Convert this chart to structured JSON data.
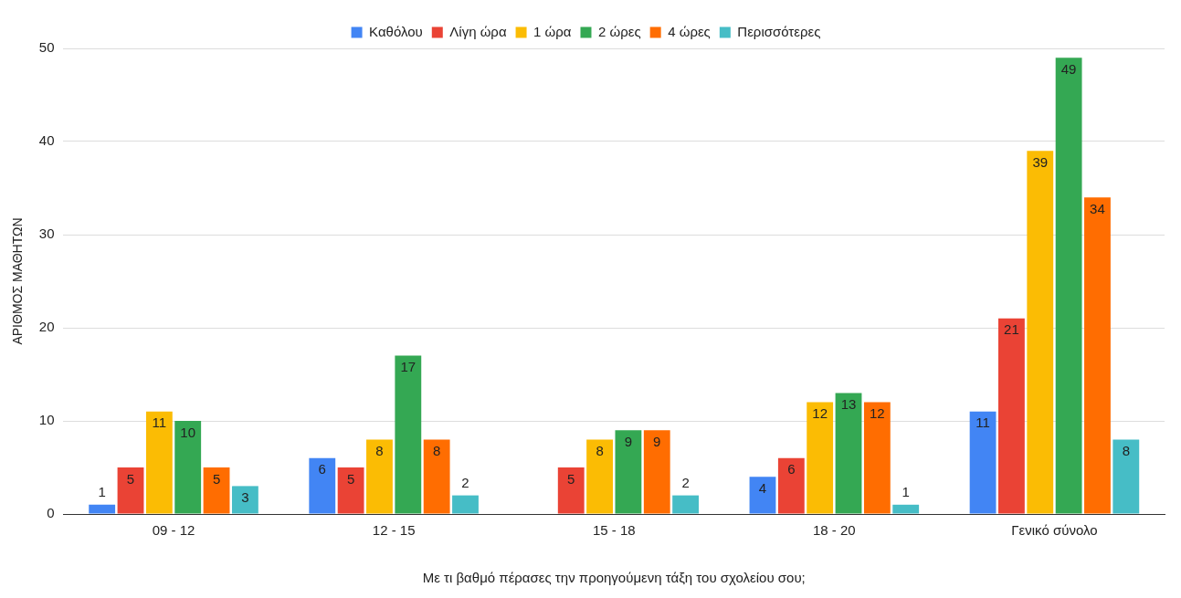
{
  "chart_data": {
    "type": "bar",
    "xlabel": "Με τι βαθμό πέρασες την προηγούμενη τάξη του σχολείου σου;",
    "ylabel": "ΑΡΙΘΜΟΣ ΜΑΘΗΤΩΝ",
    "categories": [
      "09 - 12",
      "12 - 15",
      "15 - 18",
      "18 - 20",
      "Γενικό σύνολο"
    ],
    "series": [
      {
        "name": "Καθόλου",
        "color": "#4285f4",
        "values": [
          1,
          6,
          null,
          4,
          11
        ]
      },
      {
        "name": "Λίγη ώρα",
        "color": "#ea4335",
        "values": [
          5,
          5,
          5,
          6,
          21
        ]
      },
      {
        "name": "1 ώρα",
        "color": "#fbbc04",
        "values": [
          11,
          8,
          8,
          12,
          39
        ]
      },
      {
        "name": "2 ώρες",
        "color": "#34a853",
        "values": [
          10,
          17,
          9,
          13,
          49
        ]
      },
      {
        "name": "4 ώρες",
        "color": "#ff6d01",
        "values": [
          5,
          8,
          9,
          12,
          34
        ]
      },
      {
        "name": "Περισσότερες",
        "color": "#46bdc6",
        "values": [
          3,
          2,
          2,
          1,
          8
        ]
      }
    ],
    "ylim": [
      0,
      50
    ],
    "yticks": [
      0,
      10,
      20,
      30,
      40,
      50
    ],
    "grid": "y",
    "legend": "top",
    "data_labels": true
  }
}
